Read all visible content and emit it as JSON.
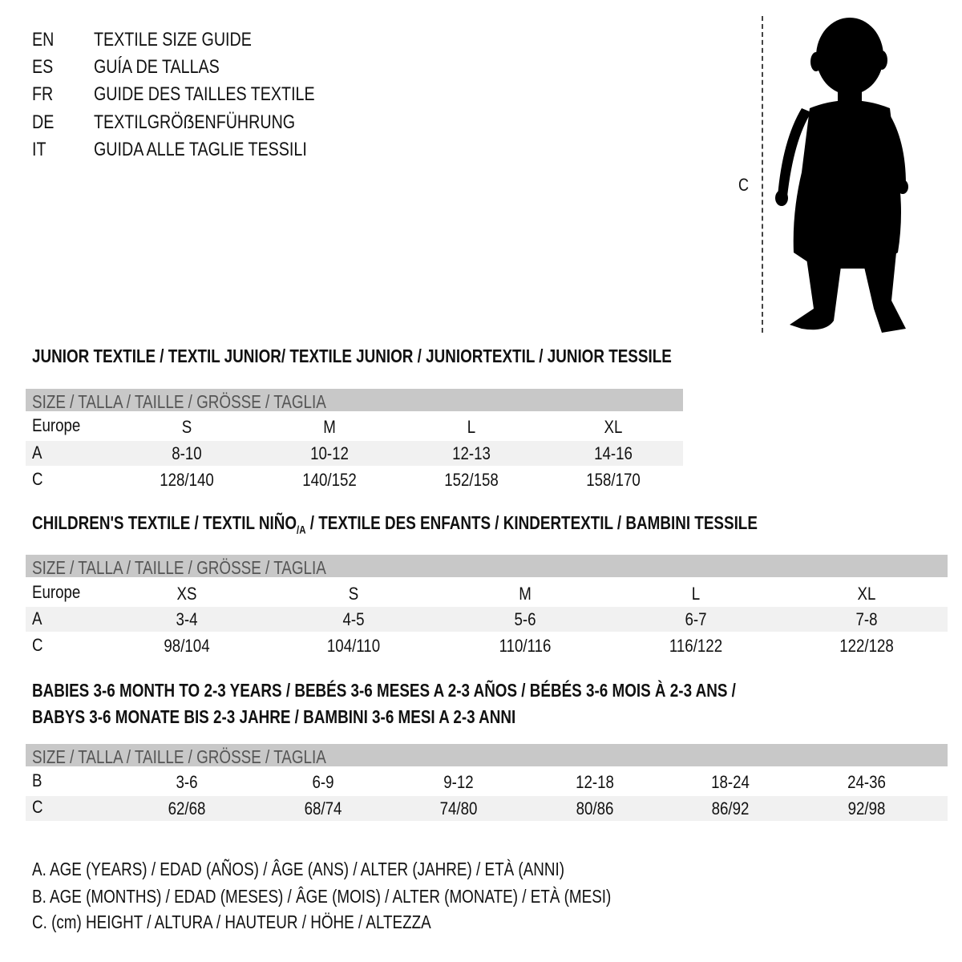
{
  "header": {
    "lines": [
      {
        "code": "EN",
        "title": "TEXTILE SIZE GUIDE"
      },
      {
        "code": "ES",
        "title": "GUÍA DE TALLAS"
      },
      {
        "code": "FR",
        "title": "GUIDE DES TAILLES TEXTILE"
      },
      {
        "code": "DE",
        "title": "TEXTILGRÖẞENFÜHRUNG"
      },
      {
        "code": "IT",
        "title": "GUIDA ALLE TAGLIE TESSILI"
      }
    ]
  },
  "figure": {
    "measure_label": "C",
    "icon": "child-silhouette-icon"
  },
  "size_header": "SIZE / TALLA / TAILLE / GRÖSSE / TAGLIA",
  "junior": {
    "title": "JUNIOR TEXTILE / TEXTIL JUNIOR/ TEXTILE JUNIOR / JUNIORTEXTIL / JUNIOR TESSILE",
    "rows": [
      {
        "label": "Europe",
        "values": [
          "S",
          "M",
          "L",
          "XL"
        ]
      },
      {
        "label": "A",
        "values": [
          "8-10",
          "10-12",
          "12-13",
          "14-16"
        ]
      },
      {
        "label": "C",
        "values": [
          "128/140",
          "140/152",
          "152/158",
          "158/170"
        ]
      }
    ]
  },
  "children": {
    "title_a": "CHILDREN'S TEXTILE / TEXTIL NIÑO",
    "title_sub": "/A",
    "title_b": " / TEXTILE DES ENFANTS / KINDERTEXTIL / BAMBINI TESSILE",
    "rows": [
      {
        "label": "Europe",
        "values": [
          "XS",
          "S",
          "M",
          "L",
          "XL"
        ]
      },
      {
        "label": "A",
        "values": [
          "3-4",
          "4-5",
          "5-6",
          "6-7",
          "7-8"
        ]
      },
      {
        "label": "C",
        "values": [
          "98/104",
          "104/110",
          "110/116",
          "116/122",
          "122/128"
        ]
      }
    ]
  },
  "babies": {
    "title_line1": "BABIES 3-6 MONTH TO 2-3 YEARS / BEBÉS 3-6 MESES A 2-3 AÑOS / BÉBÉS 3-6 MOIS À 2-3 ANS /",
    "title_line2": "BABYS 3-6 MONATE BIS 2-3 JAHRE / BAMBINI 3-6 MESI A 2-3 ANNI",
    "rows": [
      {
        "label": "B",
        "values": [
          "3-6",
          "6-9",
          "9-12",
          "12-18",
          "18-24",
          "24-36"
        ]
      },
      {
        "label": "C",
        "values": [
          "62/68",
          "68/74",
          "74/80",
          "80/86",
          "86/92",
          "92/98"
        ]
      }
    ]
  },
  "legend": [
    "A. AGE (YEARS) / EDAD (AÑOS) / ÂGE (ANS) / ALTER (JAHRE) / ETÀ (ANNI)",
    "B. AGE (MONTHS) / EDAD (MESES) / ÂGE (MOIS) / ALTER (MONATE) / ETÀ (MESI)",
    "C. (cm) HEIGHT / ALTURA / HAUTEUR / HÖHE / ALTEZZA"
  ]
}
